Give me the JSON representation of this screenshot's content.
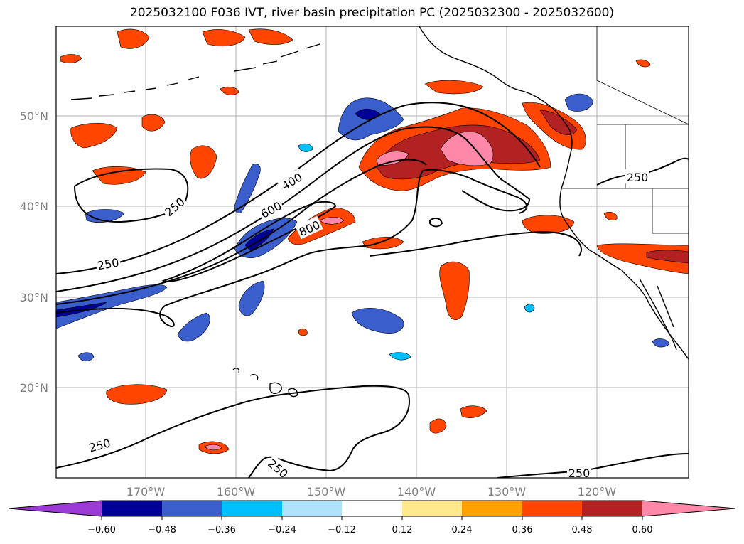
{
  "title": "2025032100 F036 IVT, river basin precipitation PC (2025032300 - 2025032600)",
  "map": {
    "lat_labels": [
      "50°N",
      "40°N",
      "30°N",
      "20°N"
    ],
    "lon_labels": [
      "170°W",
      "160°W",
      "150°W",
      "140°W",
      "130°W",
      "120°W"
    ],
    "contour_labels": [
      "250",
      "400",
      "600",
      "800",
      "250",
      "250",
      "250",
      "250",
      "250"
    ]
  },
  "colorbar": {
    "colors": {
      "extend_low": "#9c3ad6",
      "neg_060": "#000097",
      "neg_048": "#3a5fcd",
      "neg_036": "#00bfff",
      "neg_024": "#aee3fb",
      "neutral": "#ffffff",
      "pos_012": "#ffe98c",
      "pos_024": "#ffa100",
      "pos_036": "#ff4500",
      "pos_048": "#b22222",
      "extend_high": "#ff88a8"
    },
    "tick_labels": [
      "−0.60",
      "−0.48",
      "−0.36",
      "−0.24",
      "−0.12",
      "0.12",
      "0.24",
      "0.36",
      "0.48",
      "0.60"
    ]
  }
}
